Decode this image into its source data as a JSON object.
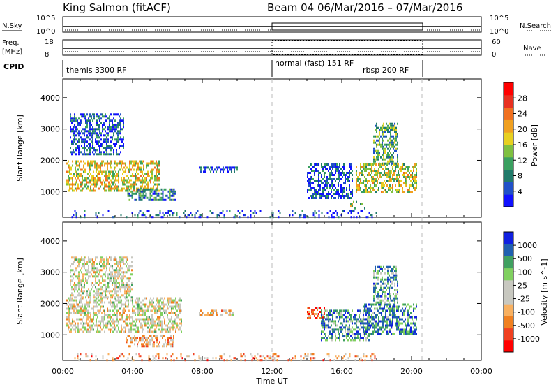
{
  "header": {
    "station": "King Salmon (fitACF)",
    "beam": "Beam 04",
    "date_range": "06/Mar/2016 – 07/Mar/2016"
  },
  "top_panels": {
    "nsky_label": "N.Sky",
    "nsky_ticks": [
      "10^5",
      "10^0"
    ],
    "nsearch_label": "N.Search",
    "nsearch_ticks": [
      "10^5",
      "10^0"
    ],
    "freq_label_line1": "Freq.",
    "freq_label_line2": "[MHz]",
    "freq_ticks": [
      "18",
      "8"
    ],
    "nave_label": "Nave",
    "nave_ticks": [
      "60",
      "0"
    ],
    "cpid_label": "CPID",
    "cpid_segments": [
      {
        "label": "themis 3300 RF",
        "start_h": 0.0,
        "end_h": 12.0
      },
      {
        "label": "normal (fast) 151 RF",
        "start_h": 12.0,
        "end_h": 20.6
      },
      {
        "label": "rbsp 200 RF",
        "start_h": 18.6,
        "end_h": 20.6
      }
    ]
  },
  "chart_data": [
    {
      "type": "heatmap",
      "name": "power",
      "ylabel": "Slant Range [km]",
      "xlabel": "Time UT",
      "xlim": [
        0,
        24
      ],
      "ylim": [
        180,
        4600
      ],
      "y_ticks": [
        1000,
        2000,
        3000,
        4000
      ],
      "x_ticks": [
        "00:00",
        "04:00",
        "08:00",
        "12:00",
        "16:00",
        "20:00",
        "00:00"
      ],
      "colorbar": {
        "label": "Power [dB]",
        "ticks": [
          "28",
          "24",
          "20",
          "16",
          "12",
          "8",
          "4"
        ],
        "colors": [
          "#1010ff",
          "#2050c8",
          "#207a6a",
          "#3aa060",
          "#7fc040",
          "#e8d020",
          "#f0a020",
          "#f07020",
          "#e83020",
          "#ff0000"
        ]
      },
      "regions": [
        {
          "t0": 0.2,
          "t1": 5.5,
          "r0": 1000,
          "r1": 2000,
          "level": 0.55
        },
        {
          "t0": 0.4,
          "t1": 3.5,
          "r0": 2200,
          "r1": 3500,
          "level": 0.15
        },
        {
          "t0": 3.7,
          "t1": 6.5,
          "r0": 700,
          "r1": 1100,
          "level": 0.25
        },
        {
          "t0": 7.8,
          "t1": 10.0,
          "r0": 1600,
          "r1": 1800,
          "level": 0.15
        },
        {
          "t0": 14.0,
          "t1": 16.6,
          "r0": 800,
          "r1": 1900,
          "level": 0.15
        },
        {
          "t0": 16.4,
          "t1": 17.4,
          "r0": 450,
          "r1": 700,
          "level": 0.45
        },
        {
          "t0": 16.8,
          "t1": 20.3,
          "r0": 1000,
          "r1": 1900,
          "level": 0.5
        },
        {
          "t0": 17.8,
          "t1": 19.2,
          "r0": 1900,
          "r1": 3200,
          "level": 0.35
        },
        {
          "t0": 0.5,
          "t1": 18.0,
          "r0": 200,
          "r1": 420,
          "level": 0.1
        }
      ]
    },
    {
      "type": "heatmap",
      "name": "velocity",
      "ylabel": "Slant Range [km]",
      "xlabel": "Time UT",
      "xlim": [
        0,
        24
      ],
      "ylim": [
        180,
        4600
      ],
      "y_ticks": [
        1000,
        2000,
        3000,
        4000
      ],
      "x_ticks": [
        "00:00",
        "04:00",
        "08:00",
        "12:00",
        "16:00",
        "20:00",
        "00:00"
      ],
      "colorbar": {
        "label": "Velocity [m s^-1]",
        "ticks": [
          "1000",
          "500",
          "100",
          "25",
          "-25",
          "-100",
          "-500",
          "-1000"
        ],
        "colors": [
          "#ff0000",
          "#f04020",
          "#f08020",
          "#f8b060",
          "#c8c8c0",
          "#c8c8c0",
          "#80d060",
          "#40a060",
          "#2060b0",
          "#1020e0"
        ]
      },
      "regions": [
        {
          "t0": 0.2,
          "t1": 6.8,
          "r0": 1100,
          "r1": 2200,
          "level": 0.5
        },
        {
          "t0": 0.4,
          "t1": 4.0,
          "r0": 2200,
          "r1": 3500,
          "level": 0.5
        },
        {
          "t0": 3.6,
          "t1": 6.4,
          "r0": 650,
          "r1": 1000,
          "level": 0.35
        },
        {
          "t0": 7.8,
          "t1": 9.8,
          "r0": 1600,
          "r1": 1800,
          "level": 0.4
        },
        {
          "t0": 14.0,
          "t1": 15.0,
          "r0": 1500,
          "r1": 1900,
          "level": 0.2
        },
        {
          "t0": 14.8,
          "t1": 17.6,
          "r0": 800,
          "r1": 1800,
          "level": 0.75
        },
        {
          "t0": 17.2,
          "t1": 20.3,
          "r0": 1000,
          "r1": 2000,
          "level": 0.8
        },
        {
          "t0": 17.8,
          "t1": 19.2,
          "r0": 2000,
          "r1": 3200,
          "level": 0.7
        },
        {
          "t0": 0.5,
          "t1": 18.0,
          "r0": 200,
          "r1": 420,
          "level": 0.3
        }
      ]
    }
  ]
}
